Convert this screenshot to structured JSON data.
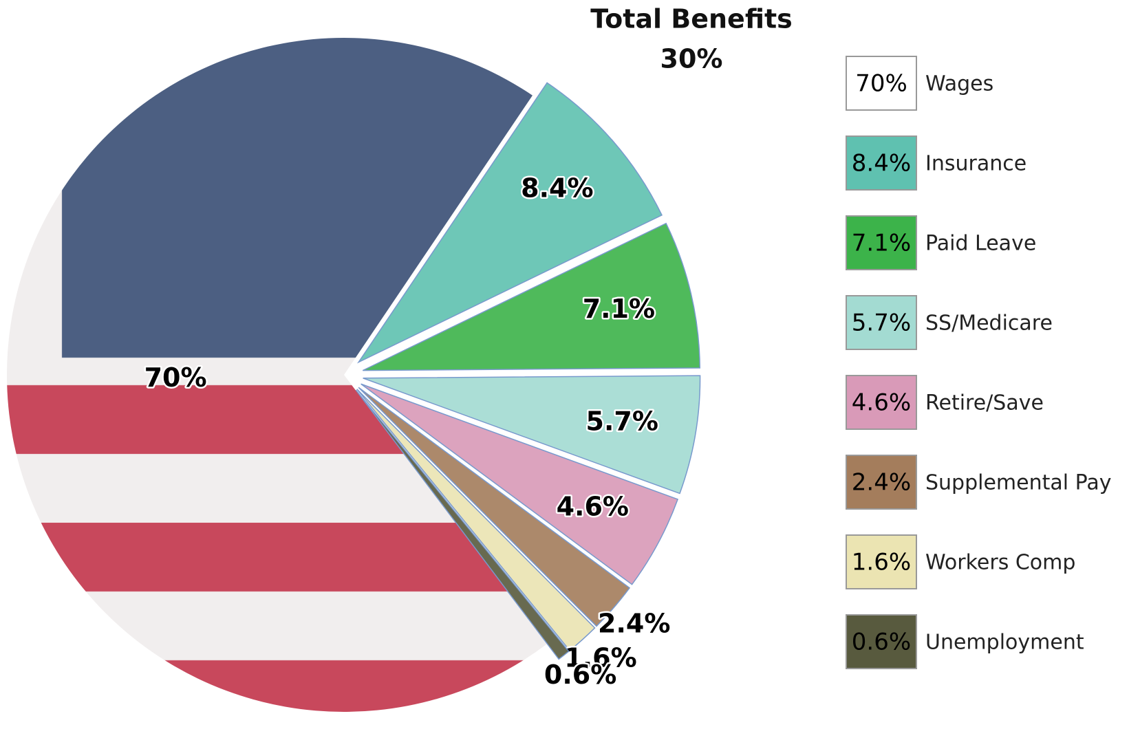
{
  "chart_data": {
    "type": "pie",
    "title": "Total Benefits",
    "annotation": "30%",
    "categories": [
      "Wages",
      "Insurance",
      "Paid Leave",
      "SS/Medicare",
      "Retire/Save",
      "Supplemental Pay",
      "Workers Comp",
      "Unemployment"
    ],
    "values": [
      70,
      8.4,
      7.1,
      5.7,
      4.6,
      2.4,
      1.6,
      0.6
    ],
    "value_labels": [
      "70%",
      "8.4%",
      "7.1%",
      "5.7%",
      "4.6%",
      "2.4%",
      "1.6%",
      "0.6%"
    ],
    "colors": [
      "#ffffff",
      "#5fc1b0",
      "#3cb34a",
      "#a3dbd2",
      "#d99ab8",
      "#a47d5c",
      "#ebe4b2",
      "#585a3e"
    ],
    "legend": "right"
  }
}
